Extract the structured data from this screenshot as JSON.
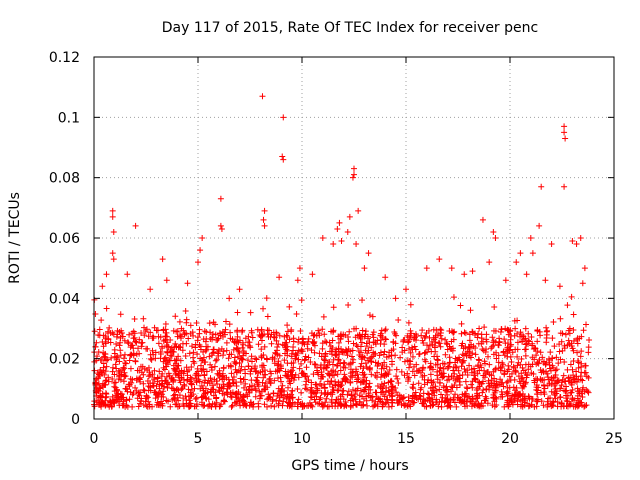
{
  "chart_data": {
    "type": "scatter",
    "title": "Day 117 of 2015, Rate Of TEC Index for receiver penc",
    "xlabel": "GPS time / hours",
    "ylabel": "ROTI / TECUs",
    "xlim": [
      0,
      25
    ],
    "ylim": [
      0,
      0.12
    ],
    "xticks": [
      0,
      5,
      10,
      15,
      20,
      25
    ],
    "xtick_labels": [
      "0",
      "5",
      "10",
      "15",
      "20",
      "25"
    ],
    "yticks": [
      0,
      0.02,
      0.04,
      0.06,
      0.08,
      0.1,
      0.12
    ],
    "ytick_labels": [
      "0",
      "0.02",
      "0.04",
      "0.06",
      "0.08",
      "0.1",
      "0.12"
    ],
    "grid": true,
    "marker": "+",
    "marker_color": "#ff0000",
    "dense_band": {
      "x_range": [
        0,
        23.8
      ],
      "y_range": [
        0.004,
        0.03
      ]
    },
    "series": [
      {
        "points": [
          [
            8.1,
            0.107
          ],
          [
            9.1,
            0.1
          ],
          [
            9.05,
            0.087
          ],
          [
            9.1,
            0.086
          ],
          [
            12.5,
            0.083
          ],
          [
            12.5,
            0.081
          ],
          [
            12.45,
            0.08
          ],
          [
            22.6,
            0.097
          ],
          [
            22.6,
            0.095
          ],
          [
            22.65,
            0.093
          ],
          [
            22.6,
            0.077
          ],
          [
            21.5,
            0.077
          ],
          [
            21.4,
            0.064
          ],
          [
            6.1,
            0.073
          ],
          [
            6.1,
            0.064
          ],
          [
            6.15,
            0.063
          ],
          [
            8.2,
            0.069
          ],
          [
            8.15,
            0.066
          ],
          [
            8.2,
            0.064
          ],
          [
            0.9,
            0.069
          ],
          [
            0.9,
            0.067
          ],
          [
            0.95,
            0.062
          ],
          [
            0.9,
            0.055
          ],
          [
            0.95,
            0.053
          ],
          [
            2.0,
            0.064
          ],
          [
            5.2,
            0.06
          ],
          [
            5.1,
            0.056
          ],
          [
            5.0,
            0.052
          ],
          [
            11.8,
            0.065
          ],
          [
            11.7,
            0.063
          ],
          [
            11.9,
            0.059
          ],
          [
            11.5,
            0.058
          ],
          [
            11.0,
            0.06
          ],
          [
            12.7,
            0.069
          ],
          [
            12.3,
            0.067
          ],
          [
            12.2,
            0.062
          ],
          [
            12.6,
            0.058
          ],
          [
            13.0,
            0.05
          ],
          [
            13.2,
            0.055
          ],
          [
            14.0,
            0.047
          ],
          [
            18.7,
            0.066
          ],
          [
            19.2,
            0.062
          ],
          [
            19.3,
            0.06
          ],
          [
            19.0,
            0.052
          ],
          [
            20.3,
            0.052
          ],
          [
            20.5,
            0.055
          ],
          [
            21.0,
            0.06
          ],
          [
            21.1,
            0.055
          ],
          [
            22.0,
            0.058
          ],
          [
            23.0,
            0.059
          ],
          [
            23.2,
            0.058
          ],
          [
            23.6,
            0.05
          ],
          [
            23.5,
            0.045
          ],
          [
            23.4,
            0.06
          ],
          [
            9.9,
            0.05
          ],
          [
            9.8,
            0.046
          ],
          [
            3.3,
            0.053
          ],
          [
            3.5,
            0.046
          ],
          [
            1.6,
            0.048
          ],
          [
            0.6,
            0.048
          ],
          [
            0.4,
            0.044
          ],
          [
            2.7,
            0.043
          ],
          [
            4.5,
            0.045
          ],
          [
            6.5,
            0.04
          ],
          [
            7.0,
            0.043
          ],
          [
            8.9,
            0.047
          ],
          [
            10.5,
            0.048
          ],
          [
            16.0,
            0.05
          ],
          [
            16.6,
            0.053
          ],
          [
            17.2,
            0.05
          ],
          [
            17.8,
            0.048
          ],
          [
            18.2,
            0.049
          ],
          [
            15.0,
            0.043
          ],
          [
            14.5,
            0.04
          ],
          [
            22.4,
            0.044
          ],
          [
            19.8,
            0.046
          ],
          [
            20.8,
            0.048
          ],
          [
            21.7,
            0.046
          ]
        ]
      }
    ]
  }
}
